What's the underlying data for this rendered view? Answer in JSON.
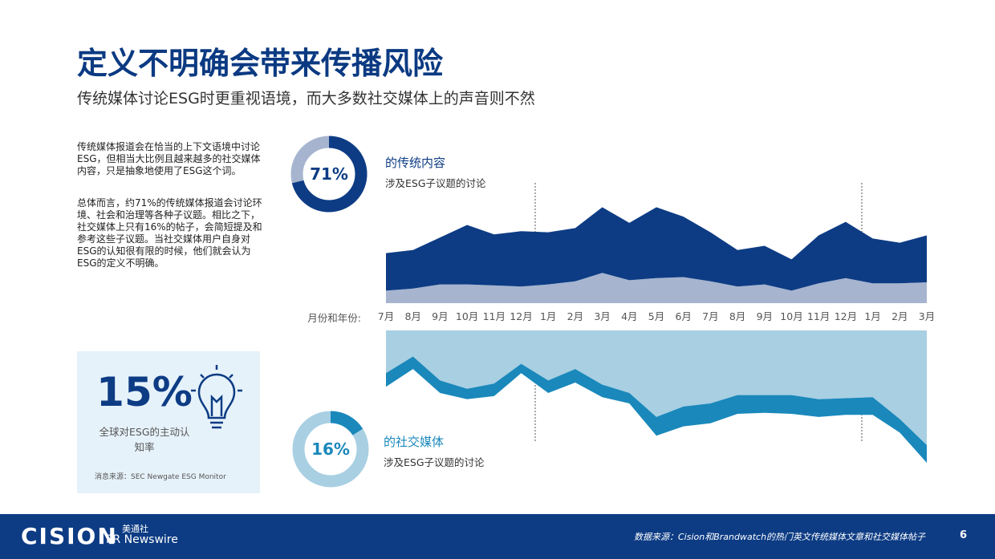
{
  "header": {
    "title": "定义不明确会带来传播风险",
    "subtitle": "传统媒体讨论ESG时更重视语境，而大多数社交媒体上的声音则不然"
  },
  "body": {
    "paragraphs": [
      "传统媒体报道会在恰当的上下文语境中讨论ESG，但相当大比例且越来越多的社交媒体内容，只是抽象地使用了ESG这个词。",
      "总体而言，约71%的传统媒体报道会讨论环境、社会和治理等各种子议题。相比之下，社交媒体上只有16%的帖子，会简短提及和参考这些子议题。当社交媒体用户自身对ESG的认知很有限的时候，他们就会认为ESG的定义不明确。"
    ]
  },
  "stat": {
    "value": "15%",
    "label": "全球对ESG的主动认知率",
    "source": "消息来源：SEC Newgate ESG Monitor"
  },
  "chart_data": [
    {
      "type": "donut",
      "values": [
        71
      ],
      "value_labels": [
        "71%"
      ],
      "colors": [
        "#0d3c84",
        "#a6b4cf"
      ],
      "title": "的传统内容",
      "subtitle": "涉及ESG子议题的讨论"
    },
    {
      "type": "area",
      "x_label": "月份和年份:",
      "categories": [
        "7月",
        "8月",
        "9月",
        "10月",
        "11月",
        "12月",
        "1月",
        "2月",
        "3月",
        "4月",
        "5月",
        "6月",
        "7月",
        "8月",
        "9月",
        "10月",
        "11月",
        "12月",
        "1月",
        "2月",
        "3月"
      ],
      "ylim": [
        0,
        100
      ],
      "direction": "up",
      "series": [
        {
          "color": "#a6b4cf",
          "values": [
            12,
            14,
            18,
            18,
            17,
            16,
            18,
            21,
            29,
            22,
            24,
            25,
            21,
            16,
            18,
            12,
            19,
            24,
            19,
            19,
            20
          ]
        },
        {
          "color": "#0d3c84",
          "values": [
            36,
            37,
            45,
            57,
            49,
            53,
            50,
            51,
            63,
            55,
            68,
            58,
            47,
            35,
            37,
            30,
            46,
            54,
            43,
            39,
            45
          ]
        }
      ]
    },
    {
      "type": "area",
      "ylim": [
        0,
        130
      ],
      "direction": "down",
      "series": [
        {
          "color": "#a8cfe2",
          "values": [
            41,
            25,
            48,
            56,
            51,
            32,
            48,
            37,
            52,
            60,
            83,
            73,
            70,
            62,
            62,
            62,
            66,
            65,
            64,
            85,
            110
          ]
        },
        {
          "color": "#1a88bb",
          "values": [
            13,
            12,
            12,
            10,
            12,
            9,
            12,
            13,
            12,
            10,
            18,
            19,
            19,
            18,
            17,
            18,
            17,
            16,
            17,
            13,
            17
          ]
        }
      ]
    },
    {
      "type": "donut",
      "values": [
        16
      ],
      "value_labels": [
        "16%"
      ],
      "colors": [
        "#1a88bb",
        "#a8cfe2"
      ],
      "title": "的社交媒体",
      "subtitle": "涉及ESG子议题的讨论"
    }
  ],
  "footer": {
    "logo": "CISION",
    "brand_cn": "美通社",
    "brand_en": "PR Newswire",
    "source": "数据来源：Cision和Brandwatch的热门英文传统媒体文章和社交媒体帖子",
    "page": "6"
  }
}
